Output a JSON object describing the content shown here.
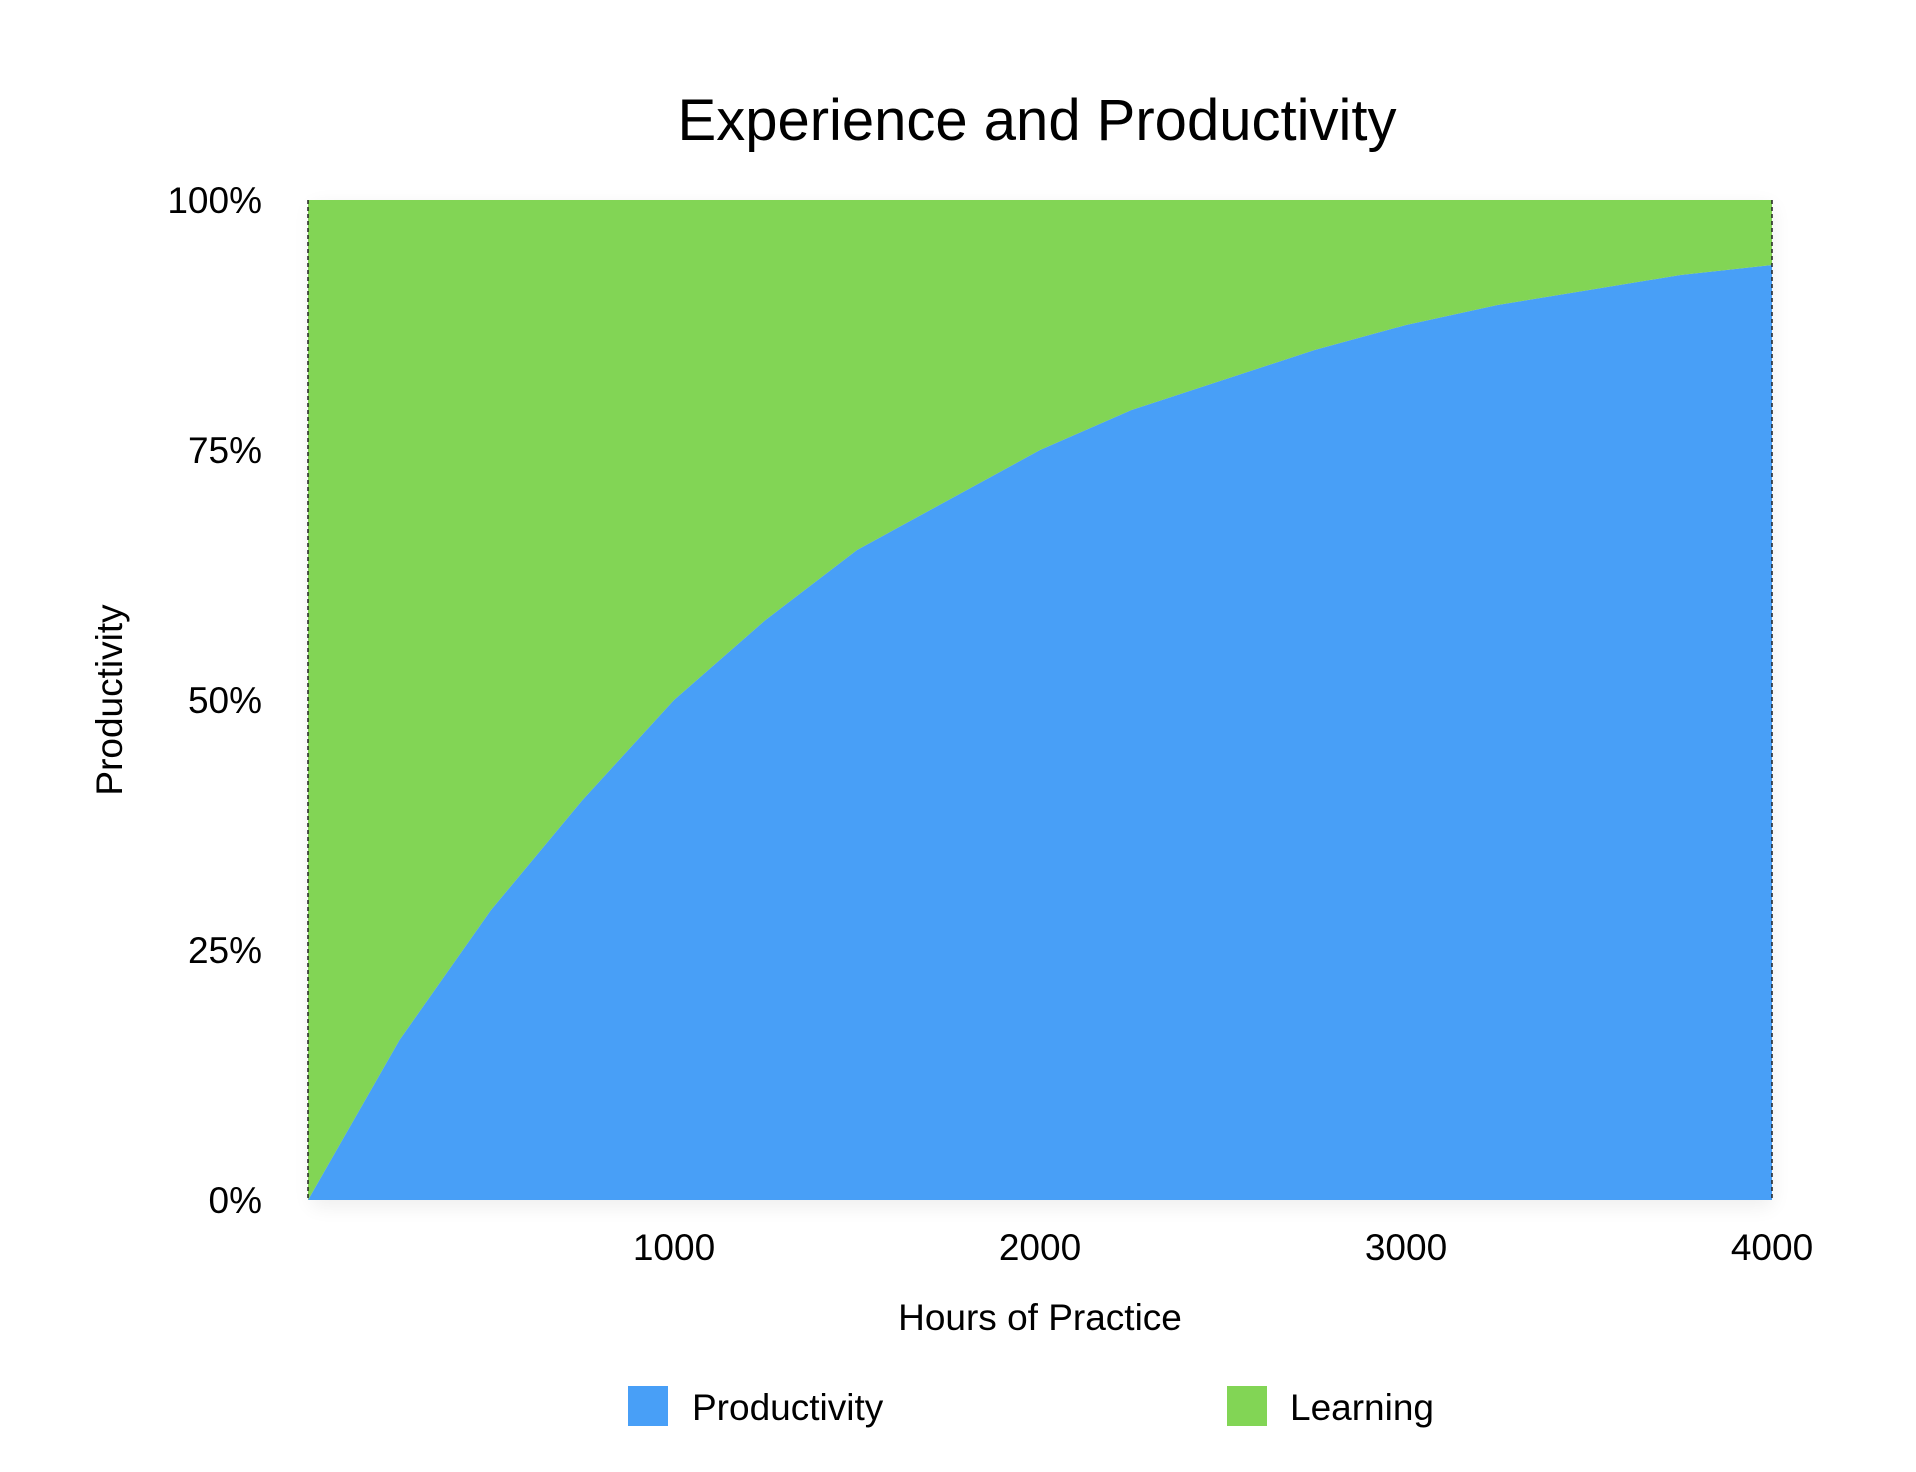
{
  "chart_data": {
    "type": "area",
    "stacking": "percent",
    "title": "Experience and Productivity",
    "xlabel": "Hours of Practice",
    "ylabel": "Productivity",
    "xlim": [
      0,
      4000
    ],
    "ylim": [
      0,
      100
    ],
    "x_ticks": [
      "1000",
      "2000",
      "3000",
      "4000"
    ],
    "y_ticks": [
      "0%",
      "25%",
      "50%",
      "75%",
      "100%"
    ],
    "x": [
      0,
      250,
      500,
      750,
      1000,
      1250,
      1500,
      1750,
      2000,
      2250,
      2500,
      2750,
      3000,
      3250,
      3500,
      3750,
      4000
    ],
    "series": [
      {
        "name": "Productivity",
        "color": "#489ff7",
        "values": [
          0,
          16,
          29,
          40,
          50,
          58,
          65,
          70,
          75,
          79,
          82,
          85,
          87.5,
          89.5,
          91,
          92.5,
          93.5
        ]
      },
      {
        "name": "Learning",
        "color": "#82d555",
        "values": [
          100,
          84,
          71,
          60,
          50,
          42,
          35,
          30,
          25,
          21,
          18,
          15,
          12.5,
          10.5,
          9,
          7.5,
          6.5
        ]
      }
    ],
    "grid": false,
    "legend_position": "bottom"
  }
}
